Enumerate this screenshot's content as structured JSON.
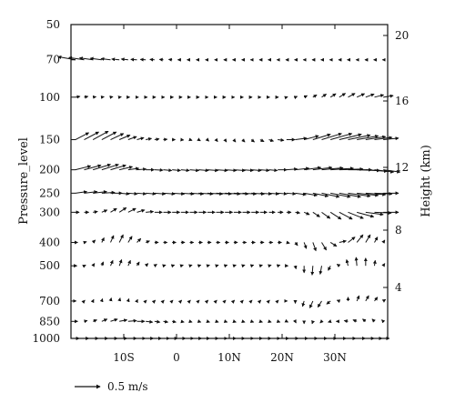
{
  "chart_data": {
    "type": "vector_field",
    "x_axis": {
      "range": [
        -20,
        40
      ],
      "tick_labels": [
        "10S",
        "0",
        "10N",
        "20N",
        "30N"
      ],
      "tick_values": [
        -10,
        0,
        10,
        20,
        30
      ]
    },
    "y_axis_left": {
      "label": "Pressure_level",
      "scale": "log",
      "range": [
        1000,
        50
      ],
      "ticks": [
        50,
        70,
        100,
        150,
        200,
        250,
        300,
        400,
        500,
        700,
        850,
        1000
      ],
      "tick_labels": [
        "50",
        "70",
        "100",
        "150",
        "200",
        "250",
        "300",
        "400",
        "500",
        "700",
        "850",
        "1000"
      ]
    },
    "y_axis_right": {
      "label": "Height (km)",
      "ticks": [
        4,
        8,
        12,
        16,
        20
      ],
      "tick_labels": [
        "4",
        "8",
        "12",
        "16",
        "20"
      ]
    },
    "reference_vector": {
      "speed_ms": 0.5,
      "label": "0.5 m/s"
    },
    "pressure_levels": [
      70,
      100,
      150,
      200,
      250,
      300,
      400,
      500,
      700,
      850,
      1000
    ],
    "lon_grid_note": "",
    "rows": [
      {
        "p": 70,
        "u": [
          -0.45,
          -0.4,
          -0.35,
          -0.3,
          -0.25,
          -0.2,
          -0.18,
          -0.16,
          -0.14,
          -0.12,
          -0.1,
          -0.09,
          -0.08,
          -0.07,
          -0.06,
          -0.05,
          -0.04,
          -0.03,
          -0.03,
          -0.02,
          -0.02,
          -0.02,
          -0.02,
          -0.02,
          -0.02,
          -0.02,
          -0.02,
          -0.02,
          -0.02,
          -0.02,
          -0.02,
          -0.02,
          -0.02,
          -0.02,
          -0.02,
          -0.02
        ],
        "w": [
          0.08,
          0.06,
          0.05,
          0.04,
          0.03,
          0.02,
          0.02,
          0.01,
          0.01,
          0.01,
          0.01,
          0.01,
          0.0,
          0.0,
          0.0,
          0.0,
          0.0,
          0.0,
          0.0,
          0.0,
          0.0,
          0.0,
          0.0,
          0.0,
          0.0,
          0.0,
          0.0,
          0.0,
          0.0,
          0.0,
          0.0,
          0.0,
          0.0,
          0.0,
          0.0,
          0.0
        ]
      },
      {
        "p": 100,
        "u": [
          0.12,
          0.1,
          0.08,
          0.06,
          0.06,
          0.05,
          0.04,
          0.04,
          0.04,
          0.03,
          0.03,
          0.03,
          0.03,
          0.02,
          0.02,
          0.02,
          0.02,
          0.02,
          0.02,
          0.02,
          0.02,
          0.02,
          0.02,
          0.02,
          0.03,
          0.05,
          0.08,
          0.1,
          0.12,
          0.14,
          0.16,
          0.18,
          0.2,
          0.22,
          0.24,
          0.26
        ],
        "w": [
          0.02,
          0.02,
          0.01,
          0.01,
          0.01,
          0.01,
          0.0,
          0.0,
          0.0,
          0.0,
          0.0,
          0.0,
          0.0,
          0.0,
          0.0,
          0.0,
          0.0,
          0.0,
          0.0,
          0.0,
          0.0,
          0.0,
          0.0,
          0.0,
          0.01,
          0.02,
          0.04,
          0.06,
          0.08,
          0.09,
          0.1,
          0.1,
          0.09,
          0.08,
          0.06,
          0.04
        ]
      },
      {
        "p": 150,
        "u": [
          0.35,
          0.38,
          0.4,
          0.38,
          0.34,
          0.28,
          0.22,
          0.18,
          0.15,
          0.12,
          0.1,
          0.08,
          0.07,
          0.06,
          0.05,
          0.04,
          0.04,
          0.04,
          0.05,
          0.06,
          0.08,
          0.1,
          0.12,
          0.16,
          0.22,
          0.3,
          0.38,
          0.46,
          0.52,
          0.56,
          0.58,
          0.58,
          0.56,
          0.52,
          0.46,
          0.4
        ],
        "w": [
          0.18,
          0.2,
          0.22,
          0.2,
          0.16,
          0.12,
          0.08,
          0.05,
          0.03,
          0.02,
          0.01,
          0.0,
          -0.01,
          -0.02,
          -0.03,
          -0.04,
          -0.05,
          -0.06,
          -0.06,
          -0.06,
          -0.06,
          -0.05,
          -0.04,
          -0.02,
          0.0,
          0.04,
          0.1,
          0.14,
          0.16,
          0.16,
          0.14,
          0.12,
          0.1,
          0.08,
          0.06,
          0.04
        ]
      },
      {
        "p": 200,
        "u": [
          0.4,
          0.44,
          0.46,
          0.44,
          0.4,
          0.34,
          0.28,
          0.24,
          0.22,
          0.22,
          0.22,
          0.22,
          0.22,
          0.24,
          0.26,
          0.28,
          0.3,
          0.3,
          0.3,
          0.28,
          0.26,
          0.24,
          0.22,
          0.24,
          0.28,
          0.36,
          0.44,
          0.5,
          0.56,
          0.6,
          0.62,
          0.62,
          0.6,
          0.56,
          0.5,
          0.44
        ],
        "w": [
          0.1,
          0.12,
          0.14,
          0.14,
          0.12,
          0.08,
          0.04,
          0.02,
          0.0,
          -0.01,
          -0.02,
          -0.02,
          -0.02,
          -0.02,
          -0.02,
          -0.02,
          -0.02,
          -0.02,
          -0.02,
          -0.02,
          -0.02,
          -0.02,
          -0.02,
          0.0,
          0.02,
          0.04,
          0.06,
          0.06,
          0.05,
          0.04,
          0.02,
          0.0,
          -0.02,
          -0.04,
          -0.06,
          -0.06
        ]
      },
      {
        "p": 250,
        "u": [
          0.3,
          0.34,
          0.36,
          0.34,
          0.3,
          0.26,
          0.24,
          0.24,
          0.26,
          0.28,
          0.3,
          0.32,
          0.34,
          0.36,
          0.38,
          0.4,
          0.4,
          0.4,
          0.38,
          0.36,
          0.34,
          0.3,
          0.26,
          0.24,
          0.24,
          0.28,
          0.34,
          0.4,
          0.46,
          0.52,
          0.56,
          0.58,
          0.56,
          0.52,
          0.46,
          0.4
        ],
        "w": [
          0.04,
          0.04,
          0.04,
          0.02,
          0.0,
          -0.02,
          -0.02,
          -0.02,
          -0.02,
          -0.02,
          -0.02,
          -0.02,
          -0.02,
          -0.02,
          -0.02,
          -0.02,
          -0.02,
          -0.02,
          -0.02,
          -0.02,
          -0.02,
          -0.02,
          -0.02,
          -0.02,
          -0.02,
          -0.04,
          -0.06,
          -0.08,
          -0.1,
          -0.1,
          -0.1,
          -0.08,
          -0.06,
          -0.04,
          -0.02,
          0.0
        ]
      },
      {
        "p": 300,
        "u": [
          0.1,
          0.12,
          0.12,
          0.14,
          0.16,
          0.18,
          0.2,
          0.2,
          0.2,
          0.2,
          0.2,
          0.2,
          0.2,
          0.2,
          0.2,
          0.2,
          0.2,
          0.2,
          0.2,
          0.2,
          0.2,
          0.18,
          0.16,
          0.14,
          0.12,
          0.12,
          0.14,
          0.18,
          0.22,
          0.28,
          0.34,
          0.4,
          0.44,
          0.46,
          0.44,
          0.4
        ],
        "w": [
          0.0,
          0.0,
          0.02,
          0.06,
          0.1,
          0.12,
          0.1,
          0.06,
          0.02,
          0.0,
          0.0,
          0.0,
          0.0,
          0.0,
          0.0,
          0.0,
          0.0,
          0.0,
          0.0,
          0.0,
          0.0,
          0.0,
          0.0,
          0.0,
          0.0,
          -0.02,
          -0.06,
          -0.12,
          -0.16,
          -0.18,
          -0.18,
          -0.16,
          -0.12,
          -0.06,
          -0.02,
          0.0
        ]
      },
      {
        "p": 400,
        "u": [
          0.06,
          0.06,
          0.06,
          0.06,
          0.08,
          0.1,
          0.1,
          0.1,
          0.1,
          0.1,
          0.1,
          0.1,
          0.1,
          0.1,
          0.1,
          0.1,
          0.1,
          0.1,
          0.1,
          0.1,
          0.1,
          0.1,
          0.1,
          0.1,
          0.08,
          0.06,
          0.06,
          0.08,
          0.12,
          0.16,
          0.18,
          0.18,
          0.16,
          0.12,
          0.08,
          0.04
        ],
        "w": [
          0.0,
          0.02,
          0.06,
          0.12,
          0.18,
          0.2,
          0.16,
          0.1,
          0.04,
          0.0,
          0.0,
          0.0,
          0.0,
          0.0,
          0.0,
          0.0,
          0.0,
          0.0,
          0.0,
          0.0,
          0.0,
          0.0,
          0.0,
          0.0,
          -0.02,
          -0.08,
          -0.16,
          -0.22,
          -0.2,
          -0.1,
          0.04,
          0.14,
          0.2,
          0.2,
          0.14,
          0.06
        ]
      },
      {
        "p": 500,
        "u": [
          0.04,
          0.04,
          0.04,
          0.04,
          0.06,
          0.06,
          0.06,
          0.06,
          0.06,
          0.06,
          0.06,
          0.06,
          0.06,
          0.06,
          0.06,
          0.06,
          0.06,
          0.06,
          0.06,
          0.06,
          0.06,
          0.06,
          0.06,
          0.06,
          0.04,
          0.02,
          0.0,
          -0.02,
          -0.04,
          -0.06,
          -0.06,
          -0.04,
          -0.02,
          0.0,
          0.02,
          0.04
        ],
        "w": [
          0.0,
          0.02,
          0.06,
          0.1,
          0.14,
          0.16,
          0.14,
          0.1,
          0.06,
          0.04,
          0.02,
          0.02,
          0.02,
          0.02,
          0.02,
          0.02,
          0.02,
          0.02,
          0.02,
          0.02,
          0.02,
          0.02,
          0.02,
          0.02,
          0.0,
          -0.08,
          -0.18,
          -0.24,
          -0.22,
          -0.12,
          0.04,
          0.16,
          0.22,
          0.2,
          0.14,
          0.06
        ]
      },
      {
        "p": 700,
        "u": [
          0.02,
          0.02,
          0.02,
          0.02,
          0.02,
          0.02,
          0.02,
          0.02,
          0.02,
          0.02,
          0.02,
          0.02,
          0.02,
          0.02,
          0.02,
          0.02,
          0.02,
          0.02,
          0.02,
          0.02,
          0.02,
          0.02,
          0.02,
          0.02,
          0.02,
          0.0,
          -0.04,
          -0.08,
          -0.1,
          -0.1,
          -0.06,
          0.0,
          0.06,
          0.08,
          0.08,
          0.06
        ],
        "w": [
          0.0,
          0.02,
          0.04,
          0.06,
          0.08,
          0.08,
          0.06,
          0.04,
          0.02,
          0.02,
          0.02,
          0.02,
          0.02,
          0.02,
          0.02,
          0.02,
          0.02,
          0.02,
          0.02,
          0.02,
          0.02,
          0.02,
          0.02,
          0.02,
          0.0,
          -0.06,
          -0.14,
          -0.18,
          -0.16,
          -0.08,
          0.02,
          0.1,
          0.14,
          0.14,
          0.1,
          0.04
        ]
      },
      {
        "p": 850,
        "u": [
          0.06,
          0.08,
          0.1,
          0.14,
          0.18,
          0.2,
          0.22,
          0.2,
          0.18,
          0.14,
          0.12,
          0.1,
          0.08,
          0.06,
          0.06,
          0.06,
          0.06,
          0.06,
          0.06,
          0.06,
          0.06,
          0.06,
          0.06,
          0.06,
          0.04,
          0.02,
          0.0,
          -0.02,
          -0.04,
          -0.06,
          -0.08,
          -0.1,
          -0.1,
          -0.08,
          -0.06,
          -0.04
        ],
        "w": [
          0.0,
          0.02,
          0.04,
          0.06,
          0.06,
          0.04,
          0.02,
          0.0,
          -0.02,
          -0.02,
          -0.02,
          -0.02,
          -0.02,
          -0.02,
          -0.02,
          -0.02,
          -0.02,
          -0.02,
          -0.02,
          -0.02,
          -0.02,
          -0.02,
          -0.02,
          -0.02,
          -0.02,
          -0.04,
          -0.06,
          -0.06,
          -0.04,
          -0.02,
          0.0,
          0.02,
          0.04,
          0.06,
          0.06,
          0.04
        ]
      },
      {
        "p": 1000,
        "u": [
          0.1,
          0.12,
          0.14,
          0.16,
          0.18,
          0.2,
          0.22,
          0.22,
          0.2,
          0.18,
          0.16,
          0.14,
          0.12,
          0.1,
          0.08,
          0.06,
          0.06,
          0.06,
          0.06,
          0.06,
          0.06,
          0.06,
          0.06,
          0.06,
          0.06,
          0.08,
          0.1,
          0.12,
          0.14,
          0.16,
          0.18,
          0.2,
          0.22,
          0.22,
          0.2,
          0.16
        ],
        "w": [
          0.0,
          0.0,
          0.0,
          0.0,
          0.0,
          0.0,
          0.0,
          0.0,
          0.0,
          0.0,
          0.0,
          0.0,
          0.0,
          0.0,
          0.0,
          0.0,
          0.0,
          0.0,
          0.0,
          0.0,
          0.0,
          0.0,
          0.0,
          0.0,
          0.0,
          0.0,
          0.0,
          0.0,
          0.0,
          0.0,
          0.0,
          0.0,
          0.0,
          0.0,
          0.0,
          0.0
        ]
      }
    ],
    "legend_placement": "bottom-left"
  }
}
